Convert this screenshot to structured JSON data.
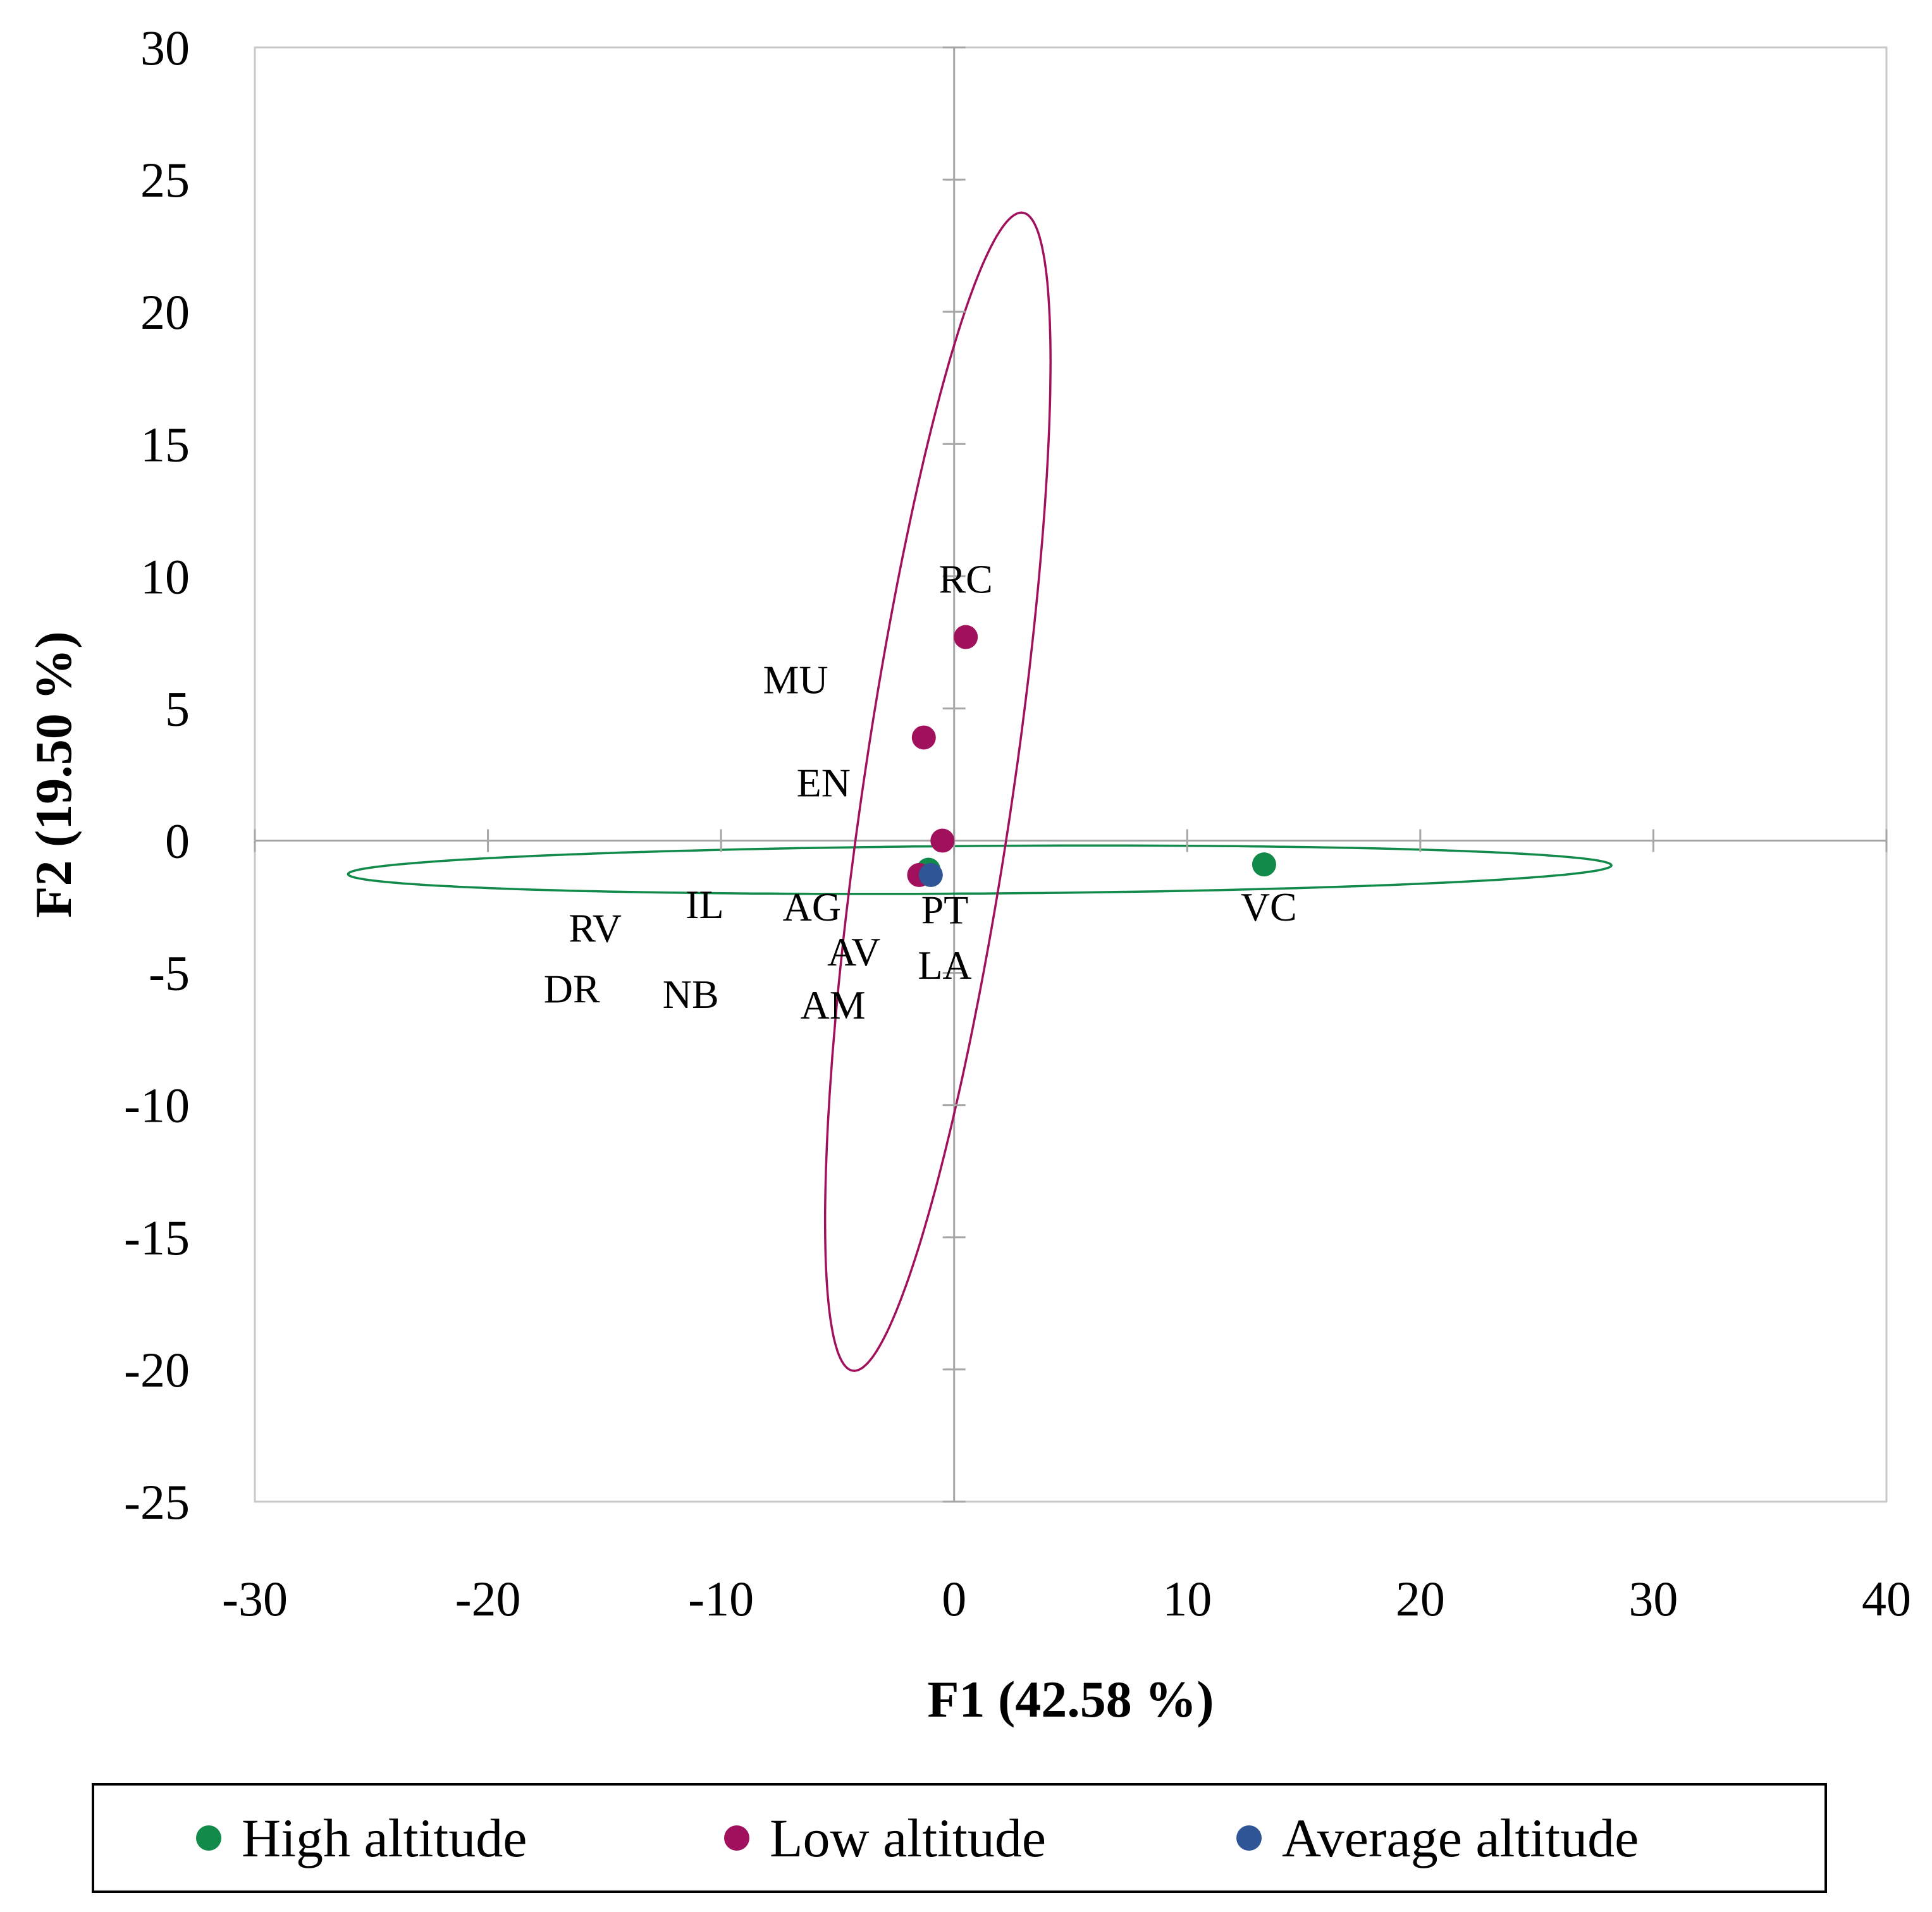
{
  "chart_data": {
    "type": "scatter",
    "xlabel": "F1 (42.58 %)",
    "ylabel": "F2 (19.50 %)",
    "xlim": [
      -30,
      40
    ],
    "ylim": [
      -25,
      30
    ],
    "x_ticks": [
      -30,
      -20,
      -10,
      0,
      10,
      20,
      30,
      40
    ],
    "y_ticks": [
      30,
      25,
      20,
      15,
      10,
      5,
      0,
      -5,
      -10,
      -15,
      -20,
      -25
    ],
    "series": [
      {
        "name": "High altitude",
        "color": "#118A4A",
        "points": [
          {
            "x": 13.3,
            "y": -0.9
          },
          {
            "x": -1.1,
            "y": -1.1
          }
        ],
        "ellipse": {
          "cx": 1.1,
          "cy": -1.1,
          "rx": 27.1,
          "ry": 0.9,
          "angle_deg": 0.35
        }
      },
      {
        "name": "Low altitude",
        "color": "#A0105C",
        "points": [
          {
            "x": 0.5,
            "y": 7.7
          },
          {
            "x": -1.3,
            "y": 3.9
          },
          {
            "x": -0.5,
            "y": 0.0
          },
          {
            "x": -1.5,
            "y": -1.3
          }
        ],
        "ellipse": {
          "cx": -0.7,
          "cy": 1.85,
          "rx": 22.2,
          "ry": 3.2,
          "angle_deg": 80.5
        }
      },
      {
        "name": "Average altitude",
        "color": "#2F5597",
        "points": [
          {
            "x": -1.0,
            "y": -1.3
          }
        ]
      }
    ],
    "annotations": [
      {
        "text": "RC",
        "x": 0.5,
        "y": 9.9
      },
      {
        "text": "MU",
        "x": -6.8,
        "y": 6.1
      },
      {
        "text": "EN",
        "x": -5.6,
        "y": 2.2
      },
      {
        "text": "IL",
        "x": -10.7,
        "y": -2.4
      },
      {
        "text": "AG",
        "x": -6.1,
        "y": -2.5
      },
      {
        "text": "PT",
        "x": -0.4,
        "y": -2.6
      },
      {
        "text": "RV",
        "x": -15.4,
        "y": -3.3
      },
      {
        "text": "AV",
        "x": -4.3,
        "y": -4.2
      },
      {
        "text": "LA",
        "x": -0.4,
        "y": -4.7
      },
      {
        "text": "DR",
        "x": -16.4,
        "y": -5.6
      },
      {
        "text": "NB",
        "x": -11.3,
        "y": -5.8
      },
      {
        "text": "AM",
        "x": -5.2,
        "y": -6.2
      },
      {
        "text": "VC",
        "x": 13.5,
        "y": -2.5
      }
    ],
    "legend": [
      "High altitude",
      "Low altitude",
      "Average altitude"
    ],
    "legend_position": "bottom"
  }
}
